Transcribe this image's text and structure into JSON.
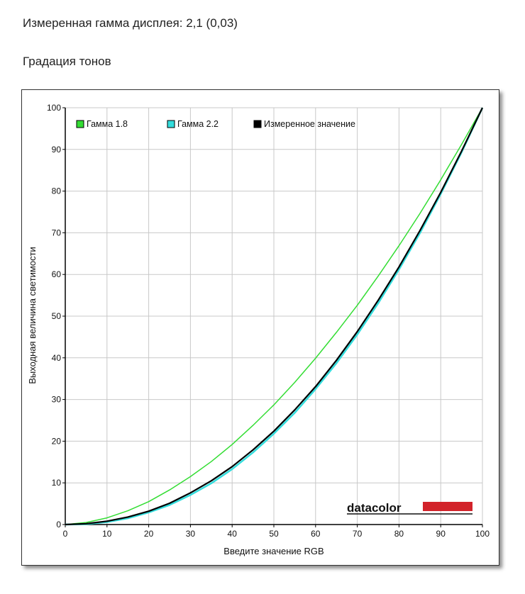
{
  "header": {
    "measured_gamma": "Измеренная гамма дисплея: 2,1 (0,03)",
    "section_title": "Градация тонов"
  },
  "logo": {
    "text": "datacolor",
    "color": "#d2232a"
  },
  "chart_data": {
    "type": "line",
    "xlabel": "Введите значение RGB",
    "ylabel": "Выходная величина светимости",
    "xlim": [
      0,
      100
    ],
    "ylim": [
      0,
      100
    ],
    "xticks": [
      0,
      10,
      20,
      30,
      40,
      50,
      60,
      70,
      80,
      90,
      100
    ],
    "yticks": [
      0,
      10,
      20,
      30,
      40,
      50,
      60,
      70,
      80,
      90,
      100
    ],
    "grid": true,
    "legend_position": "top-left",
    "series": [
      {
        "name": "Гамма 1.8",
        "color": "#33dd33",
        "x": [
          0,
          5,
          10,
          15,
          20,
          25,
          30,
          35,
          40,
          45,
          50,
          55,
          60,
          65,
          70,
          75,
          80,
          85,
          90,
          95,
          100
        ],
        "y": [
          0,
          0.5,
          1.6,
          3.3,
          5.5,
          8.3,
          11.5,
          15.1,
          19.2,
          23.8,
          28.7,
          34.1,
          39.9,
          46.1,
          52.6,
          59.6,
          66.9,
          74.6,
          82.7,
          91.2,
          100
        ]
      },
      {
        "name": "Гамма 2.2",
        "color": "#33dddd",
        "x": [
          0,
          5,
          10,
          15,
          20,
          25,
          30,
          35,
          40,
          45,
          50,
          55,
          60,
          65,
          70,
          75,
          80,
          85,
          90,
          95,
          100
        ],
        "y": [
          0,
          0.1,
          0.6,
          1.5,
          2.9,
          4.7,
          7.1,
          9.9,
          13.3,
          17.3,
          21.8,
          26.8,
          32.5,
          38.7,
          45.6,
          53.1,
          61.2,
          69.9,
          79.3,
          89.3,
          100
        ]
      },
      {
        "name": "Измеренное значение",
        "color": "#000000",
        "x": [
          0,
          5,
          10,
          15,
          20,
          25,
          30,
          35,
          40,
          45,
          50,
          55,
          60,
          65,
          70,
          75,
          80,
          85,
          90,
          95,
          100
        ],
        "y": [
          0,
          0.2,
          0.8,
          1.8,
          3.2,
          5.1,
          7.6,
          10.5,
          13.9,
          17.9,
          22.4,
          27.5,
          33.1,
          39.4,
          46.3,
          53.8,
          61.8,
          70.5,
          79.7,
          89.6,
          100
        ]
      }
    ]
  }
}
